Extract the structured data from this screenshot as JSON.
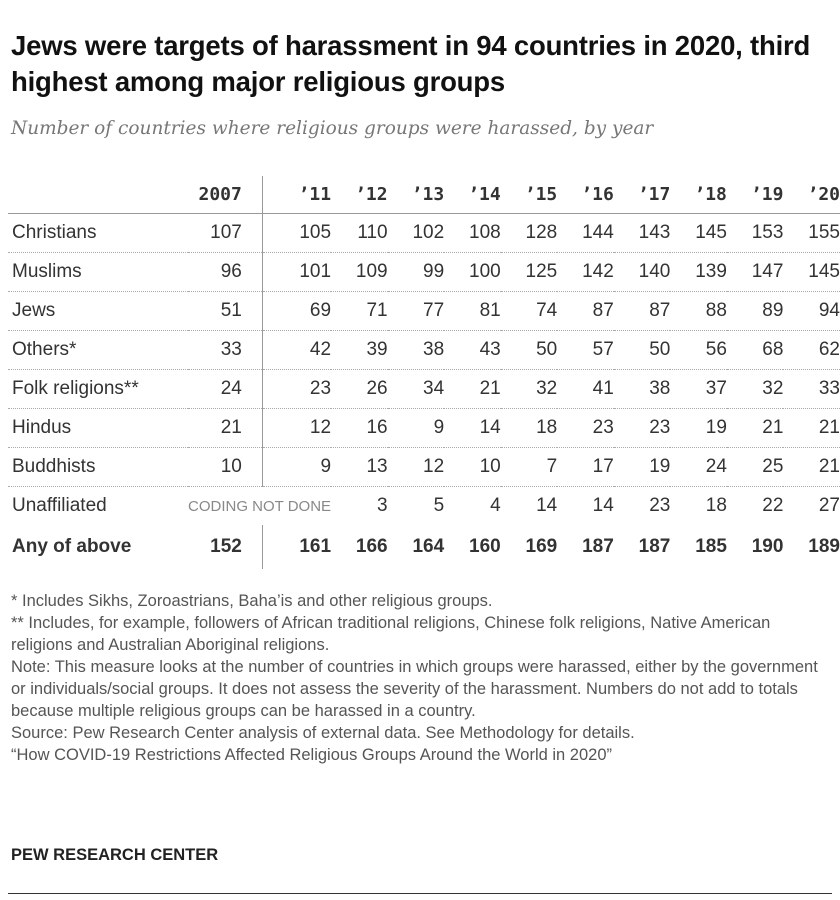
{
  "title": "Jews were targets of harassment in 94 countries in 2020, third highest among major religious groups",
  "subtitle": "Number of countries where religious groups were harassed, by year",
  "chart_data": {
    "type": "table",
    "columns": [
      "2007",
      "’11",
      "’12",
      "’13",
      "’14",
      "’15",
      "’16",
      "’17",
      "’18",
      "’19",
      "’20"
    ],
    "rows": [
      {
        "label": "Christians",
        "values": [
          107,
          105,
          110,
          102,
          108,
          128,
          144,
          143,
          145,
          153,
          155
        ]
      },
      {
        "label": "Muslims",
        "values": [
          96,
          101,
          109,
          99,
          100,
          125,
          142,
          140,
          139,
          147,
          145
        ]
      },
      {
        "label": "Jews",
        "values": [
          51,
          69,
          71,
          77,
          81,
          74,
          87,
          87,
          88,
          89,
          94
        ]
      },
      {
        "label": "Others*",
        "values": [
          33,
          42,
          39,
          38,
          43,
          50,
          57,
          50,
          56,
          68,
          62
        ]
      },
      {
        "label": "Folk religions**",
        "values": [
          24,
          23,
          26,
          34,
          21,
          32,
          41,
          38,
          37,
          32,
          33
        ]
      },
      {
        "label": "Hindus",
        "values": [
          21,
          12,
          16,
          9,
          14,
          18,
          23,
          23,
          19,
          21,
          21
        ]
      },
      {
        "label": "Buddhists",
        "values": [
          10,
          9,
          13,
          12,
          10,
          7,
          17,
          19,
          24,
          25,
          21
        ]
      },
      {
        "label": "Unaffiliated",
        "values": [
          null,
          null,
          3,
          5,
          4,
          14,
          14,
          23,
          18,
          22,
          27
        ],
        "note": "CODING NOT DONE"
      },
      {
        "label": "Any of above",
        "values": [
          152,
          161,
          166,
          164,
          160,
          169,
          187,
          187,
          185,
          190,
          189
        ],
        "total": true
      }
    ]
  },
  "notes": [
    "* Includes Sikhs, Zoroastrians, Baha’is and other religious groups.",
    "** Includes, for example, followers of African traditional religions, Chinese folk religions, Native American religions and Australian Aboriginal religions.",
    "Note: This measure looks at the number of countries in which groups were harassed, either by the government or individuals/social groups. It does not assess the severity of the harassment. Numbers do not add to totals because multiple religious groups can be harassed in a country.",
    "Source: Pew Research Center analysis of external data. See Methodology for details.",
    "“How COVID-19 Restrictions Affected Religious Groups Around the World in 2020”"
  ],
  "logo": "PEW RESEARCH CENTER"
}
